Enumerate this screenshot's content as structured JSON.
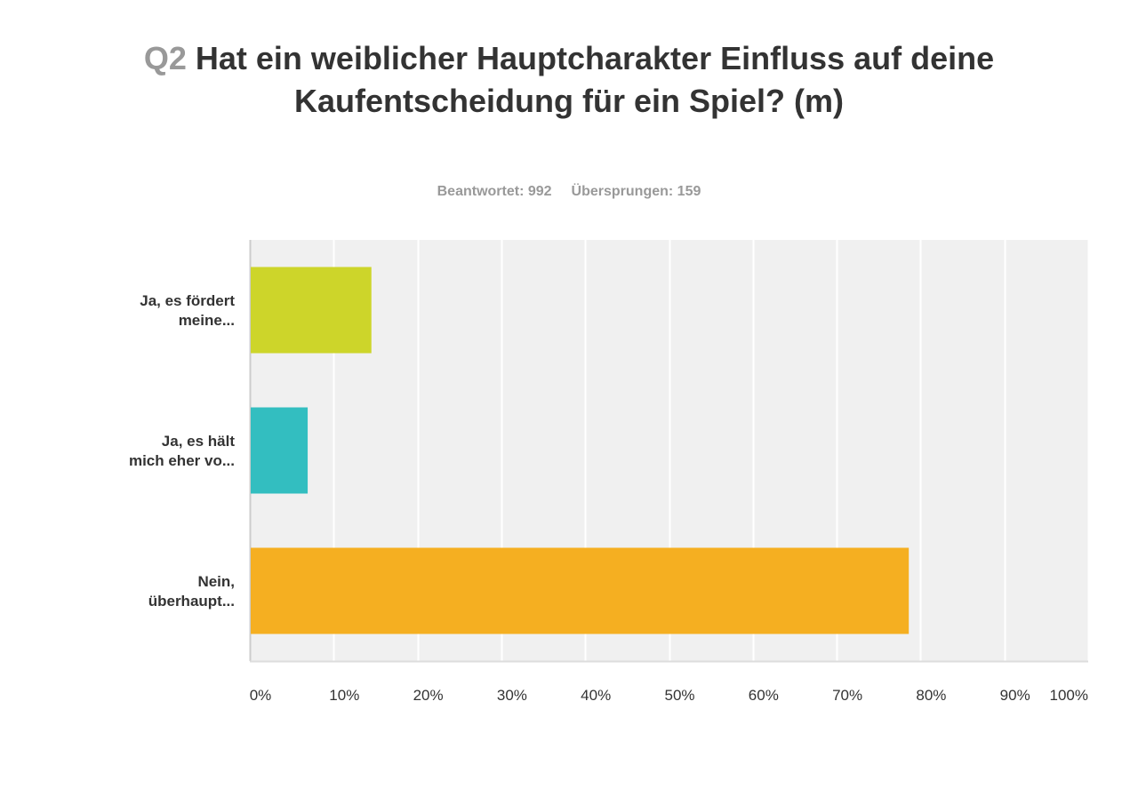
{
  "header": {
    "question_number": "Q2",
    "question_text": "Hat ein weiblicher Hauptcharakter Einfluss auf deine Kaufentscheidung für ein Spiel? (m)",
    "answered": "Beantwortet: 992",
    "skipped": "Übersprungen: 159"
  },
  "chart_data": {
    "type": "bar",
    "orientation": "horizontal",
    "categories": [
      [
        "Ja, es fördert",
        "meine..."
      ],
      [
        "Ja, es hält",
        "mich eher vo..."
      ],
      [
        "Nein,",
        "überhaupt..."
      ]
    ],
    "values": [
      14.5,
      6.9,
      78.6
    ],
    "unit": "%",
    "colors": [
      "#cdd52a",
      "#33bec0",
      "#f5af21"
    ],
    "xlim": [
      0,
      100
    ],
    "ticks": [
      0,
      10,
      20,
      30,
      40,
      50,
      60,
      70,
      80,
      90,
      100
    ],
    "tick_labels": [
      "0%",
      "10%",
      "20%",
      "30%",
      "40%",
      "50%",
      "60%",
      "70%",
      "80%",
      "90%",
      "100%"
    ],
    "grid": true,
    "background": "#f0f0f0"
  }
}
